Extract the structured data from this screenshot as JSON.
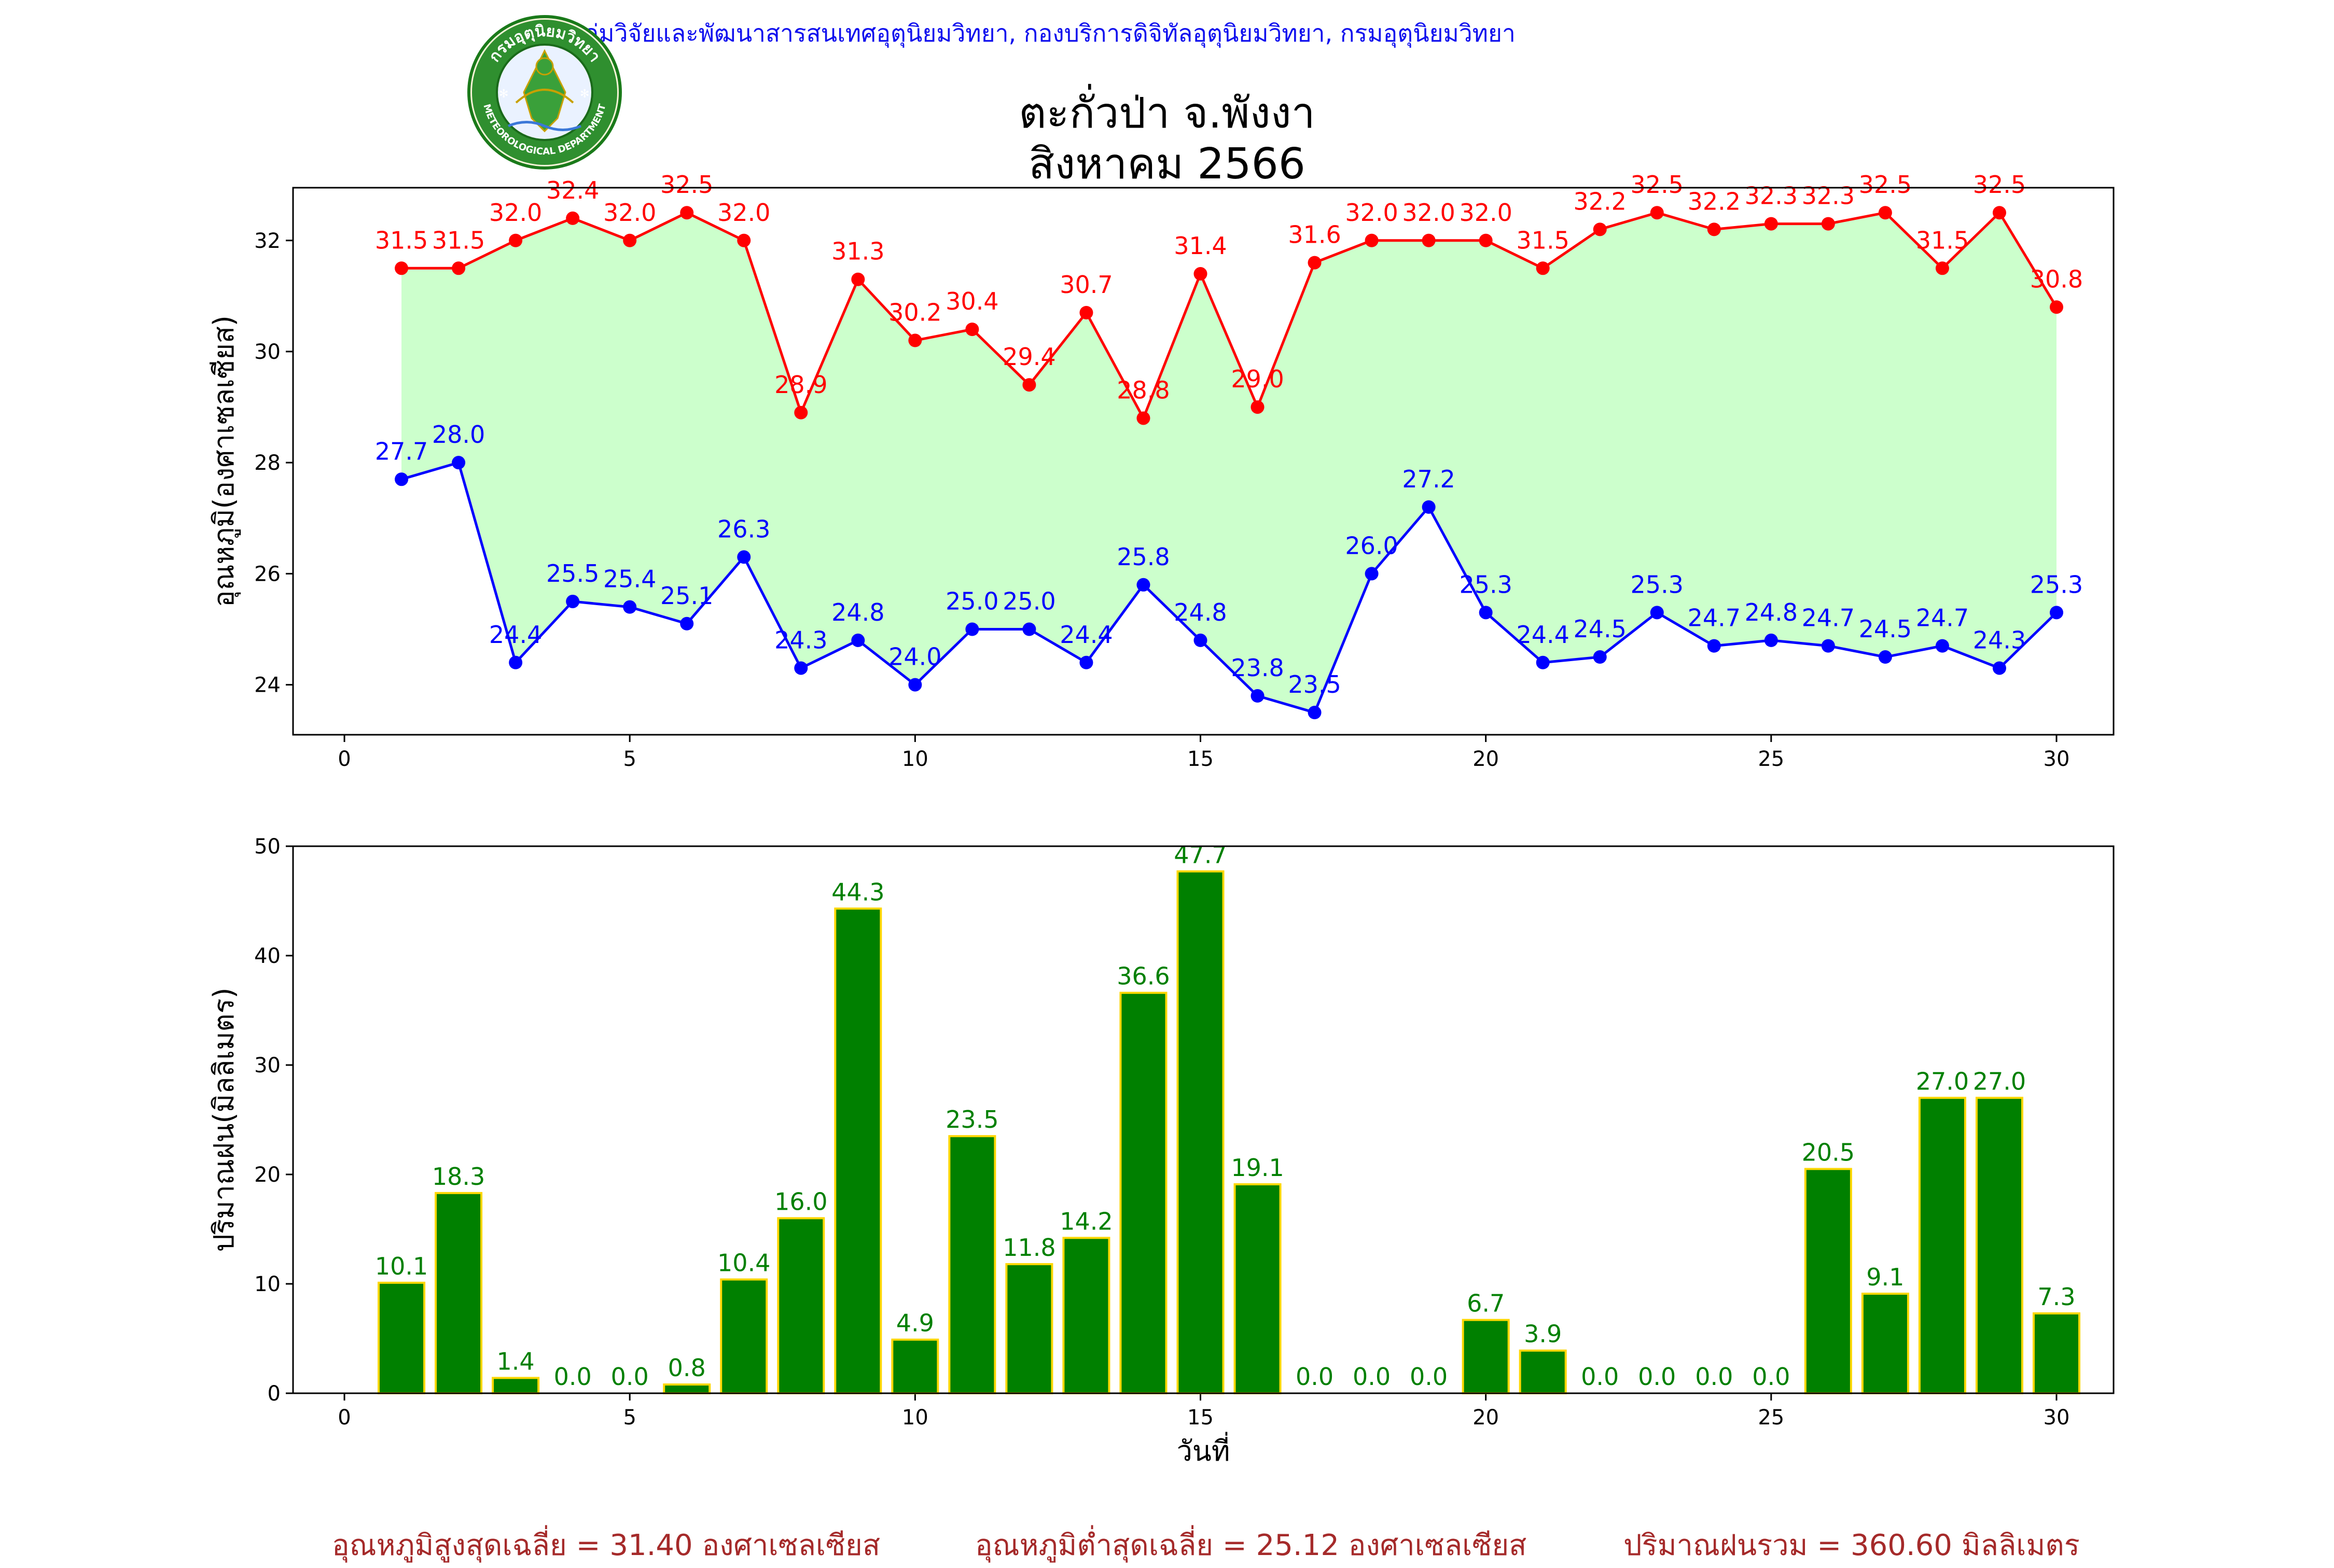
{
  "header": {
    "department": "กลุ่มวิจัยและพัฒนาสารสนเทศอุตุนิยมวิทยา, กองบริการดิจิทัลอุตุนิยมวิทยา, กรมอุตุนิยมวิทยา",
    "station": "ตะกั่วป่า จ.พังงา",
    "period": "สิงหาคม 2566",
    "logo_text_top": "กรมอุตุนิยมวิทยา",
    "logo_text_bottom": "METEOROLOGICAL DEPARTMENT"
  },
  "colors": {
    "max_line": "#ff0000",
    "min_line": "#0000ff",
    "fill": "#ccffcc",
    "bar_fill": "#008000",
    "bar_edge": "#ffd700",
    "rain_label": "#008000",
    "summary_text": "#a52a2a",
    "header_text": "#1010ee"
  },
  "chart_data": [
    {
      "type": "line",
      "ylabel": "อุณหภูมิ(องศาเซลเซียส)",
      "xlabel": "",
      "xlim": [
        -0.9,
        31.0
      ],
      "ylim": [
        23.1,
        32.95
      ],
      "xticks": [
        0,
        5,
        10,
        15,
        20,
        25,
        30
      ],
      "yticks": [
        24,
        26,
        28,
        30,
        32
      ],
      "fill_between": true,
      "x": [
        1,
        2,
        3,
        4,
        5,
        6,
        7,
        8,
        9,
        10,
        11,
        12,
        13,
        14,
        15,
        16,
        17,
        18,
        19,
        20,
        21,
        22,
        23,
        24,
        25,
        26,
        27,
        28,
        29,
        30
      ],
      "series": [
        {
          "key": "max",
          "values": [
            31.5,
            31.5,
            32.0,
            32.4,
            32.0,
            32.5,
            32.0,
            28.9,
            31.3,
            30.2,
            30.4,
            29.4,
            30.7,
            28.8,
            31.4,
            29.0,
            31.6,
            32.0,
            32.0,
            32.0,
            31.5,
            32.2,
            32.5,
            32.2,
            32.3,
            32.3,
            32.5,
            31.5,
            32.5,
            30.8
          ]
        },
        {
          "key": "min",
          "values": [
            27.7,
            28.0,
            24.4,
            25.5,
            25.4,
            25.1,
            26.3,
            24.3,
            24.8,
            24.0,
            25.0,
            25.0,
            24.4,
            25.8,
            24.8,
            23.8,
            23.5,
            26.0,
            27.2,
            25.3,
            24.4,
            24.5,
            25.3,
            24.7,
            24.8,
            24.7,
            24.5,
            24.7,
            24.3,
            25.3
          ]
        }
      ]
    },
    {
      "type": "bar",
      "ylabel": "ปริมาณฝน(มิลลิเมตร)",
      "xlabel": "วันที่",
      "xlim": [
        -0.9,
        31.0
      ],
      "ylim": [
        0,
        50
      ],
      "xticks": [
        0,
        5,
        10,
        15,
        20,
        25,
        30
      ],
      "yticks": [
        0,
        10,
        20,
        30,
        40,
        50
      ],
      "categories": [
        1,
        2,
        3,
        4,
        5,
        6,
        7,
        8,
        9,
        10,
        11,
        12,
        13,
        14,
        15,
        16,
        17,
        18,
        19,
        20,
        21,
        22,
        23,
        24,
        25,
        26,
        27,
        28,
        29,
        30
      ],
      "values": [
        10.1,
        18.3,
        1.4,
        0.0,
        0.0,
        0.8,
        10.4,
        16.0,
        44.3,
        4.9,
        23.5,
        11.8,
        14.2,
        36.6,
        47.7,
        19.1,
        0.0,
        0.0,
        0.0,
        6.7,
        3.9,
        0.0,
        0.0,
        0.0,
        0.0,
        20.5,
        9.1,
        27.0,
        27.0,
        7.3
      ]
    }
  ],
  "summary": {
    "max_avg": "อุณหภูมิสูงสุดเฉลี่ย = 31.40 องศาเซลเซียส",
    "min_avg": "อุณหภูมิต่ำสุดเฉลี่ย = 25.12 องศาเซลเซียส",
    "rain_total": "ปริมาณฝนรวม = 360.60 มิลลิเมตร"
  }
}
